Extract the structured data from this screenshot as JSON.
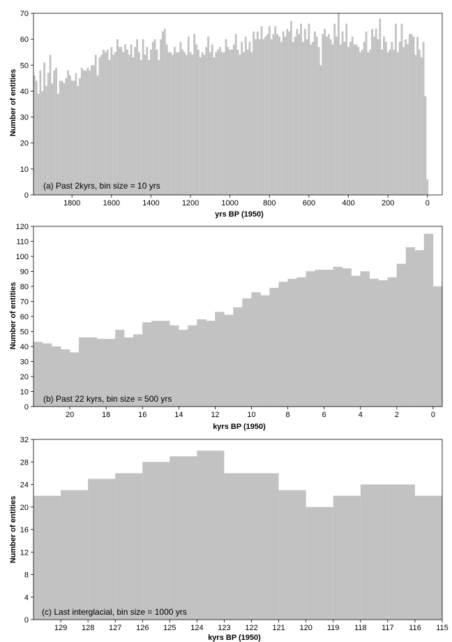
{
  "chart_data": [
    {
      "id": "a",
      "type": "bar",
      "annotation": "(a) Past 2kyrs,  bin size = 10 yrs",
      "xlabel": "yrs BP (1950)",
      "ylabel": "Number of entities",
      "ylim": [
        0,
        70
      ],
      "yticks": [
        "0",
        "10",
        "20",
        "30",
        "40",
        "50",
        "60",
        "70"
      ],
      "xlim": [
        1995,
        -75
      ],
      "xticks": [
        {
          "value": 1800,
          "label": "1800"
        },
        {
          "value": 1600,
          "label": "1600"
        },
        {
          "value": 1400,
          "label": "1400"
        },
        {
          "value": 1200,
          "label": "1200"
        },
        {
          "value": 1000,
          "label": "1000"
        },
        {
          "value": 800,
          "label": "800"
        },
        {
          "value": 600,
          "label": "600"
        },
        {
          "value": 400,
          "label": "400"
        },
        {
          "value": 200,
          "label": "200"
        },
        {
          "value": 0,
          "label": "0"
        }
      ],
      "bin_start": 1995,
      "bin_width": 10,
      "values": [
        46,
        44,
        39,
        48,
        40,
        51,
        42,
        47,
        54,
        43,
        48,
        49,
        39,
        44,
        44,
        43,
        45,
        48,
        46,
        44,
        44,
        47,
        42,
        45,
        49,
        48,
        48,
        49,
        48,
        50,
        50,
        54,
        46,
        53,
        54,
        56,
        55,
        56,
        52,
        57,
        54,
        55,
        60,
        57,
        57,
        55,
        58,
        56,
        54,
        58,
        53,
        57,
        60,
        55,
        52,
        60,
        54,
        57,
        52,
        56,
        59,
        60,
        56,
        52,
        60,
        63,
        64,
        58,
        55,
        55,
        54,
        57,
        55,
        55,
        59,
        56,
        55,
        54,
        61,
        55,
        54,
        62,
        58,
        56,
        53,
        55,
        54,
        57,
        61,
        55,
        58,
        53,
        55,
        56,
        57,
        55,
        55,
        60,
        57,
        56,
        56,
        58,
        62,
        56,
        54,
        59,
        55,
        61,
        56,
        59,
        55,
        63,
        60,
        63,
        60,
        65,
        60,
        61,
        62,
        65,
        60,
        62,
        65,
        62,
        61,
        59,
        63,
        61,
        64,
        63,
        67,
        59,
        61,
        64,
        62,
        66,
        59,
        64,
        60,
        66,
        58,
        59,
        63,
        61,
        57,
        50,
        62,
        64,
        61,
        62,
        60,
        58,
        66,
        61,
        70,
        58,
        63,
        59,
        66,
        57,
        59,
        61,
        58,
        58,
        57,
        55,
        56,
        59,
        63,
        55,
        56,
        64,
        61,
        64,
        60,
        68,
        56,
        61,
        59,
        55,
        56,
        59,
        56,
        66,
        55,
        59,
        66,
        57,
        60,
        58,
        62,
        62,
        61,
        54,
        61,
        56,
        53,
        59,
        38,
        6
      ]
    },
    {
      "id": "b",
      "type": "bar",
      "annotation": "(b) Past 22 kyrs, bin size = 500 yrs",
      "xlabel": "kyrs BP (1950)",
      "ylabel": "Number of entities",
      "ylim": [
        0,
        120
      ],
      "yticks": [
        "0",
        "10",
        "20",
        "30",
        "40",
        "50",
        "60",
        "70",
        "80",
        "90",
        "100",
        "110",
        "120"
      ],
      "xlim": [
        22,
        -0.5
      ],
      "xticks": [
        {
          "value": 20,
          "label": "20"
        },
        {
          "value": 18,
          "label": "18"
        },
        {
          "value": 16,
          "label": "16"
        },
        {
          "value": 14,
          "label": "14"
        },
        {
          "value": 12,
          "label": "12"
        },
        {
          "value": 10,
          "label": "10"
        },
        {
          "value": 8,
          "label": "8"
        },
        {
          "value": 6,
          "label": "6"
        },
        {
          "value": 4,
          "label": "4"
        },
        {
          "value": 2,
          "label": "2"
        },
        {
          "value": 0,
          "label": "0"
        }
      ],
      "bin_start": 22,
      "bin_width": 0.5,
      "values": [
        43,
        42,
        40,
        38,
        36,
        46,
        46,
        45,
        45,
        51,
        46,
        48,
        56,
        57,
        57,
        54,
        51,
        54,
        58,
        57,
        63,
        61,
        66,
        72,
        76,
        74,
        79,
        83,
        85,
        86,
        90,
        91,
        91,
        93,
        92,
        87,
        90,
        85,
        84,
        86,
        95,
        106,
        104,
        115,
        80
      ]
    },
    {
      "id": "c",
      "type": "bar",
      "annotation": "(c) Last interglacial,  bin size = 1000 yrs",
      "xlabel": "kyrs BP (1950)",
      "ylabel": "Number of entities",
      "ylim": [
        0,
        32
      ],
      "yticks": [
        "0",
        "4",
        "8",
        "12",
        "16",
        "20",
        "24",
        "28",
        "32"
      ],
      "xlim": [
        130,
        115
      ],
      "xticks": [
        {
          "value": 129,
          "label": "129"
        },
        {
          "value": 128,
          "label": "128"
        },
        {
          "value": 127,
          "label": "127"
        },
        {
          "value": 126,
          "label": "126"
        },
        {
          "value": 125,
          "label": "125"
        },
        {
          "value": 124,
          "label": "124"
        },
        {
          "value": 123,
          "label": "123"
        },
        {
          "value": 122,
          "label": "122"
        },
        {
          "value": 121,
          "label": "121"
        },
        {
          "value": 120,
          "label": "120"
        },
        {
          "value": 119,
          "label": "119"
        },
        {
          "value": 118,
          "label": "118"
        },
        {
          "value": 117,
          "label": "117"
        },
        {
          "value": 116,
          "label": "116"
        },
        {
          "value": 115,
          "label": "115"
        }
      ],
      "bin_start": 130,
      "bin_width": 1,
      "values": [
        22,
        23,
        25,
        26,
        28,
        29,
        30,
        26,
        26,
        23,
        20,
        22,
        24,
        24,
        22
      ]
    }
  ]
}
